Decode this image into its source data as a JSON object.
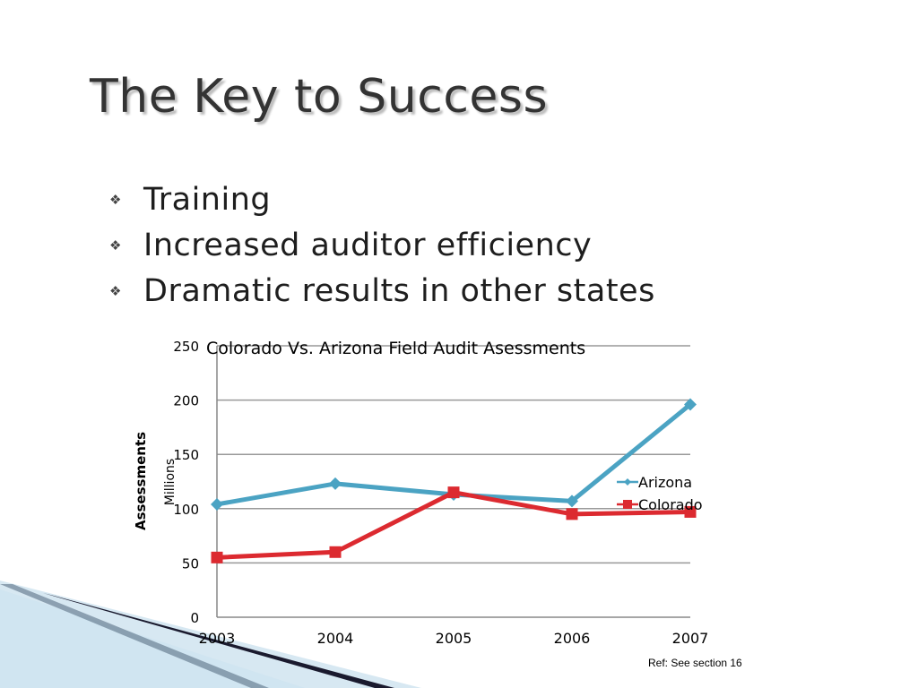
{
  "slide": {
    "title": "The Key to Success",
    "bullets": [
      "Training",
      "Increased auditor efficiency",
      "Dramatic results in other states"
    ],
    "footnote": "Ref: See section 16"
  },
  "icons": {
    "bullet": "diamond-bullet-icon"
  },
  "colors": {
    "arizona": "#4ba3c3",
    "colorado": "#dc2a30",
    "title": "#333333",
    "accent_dark": "#1a1a2e",
    "accent_light": "#b7d6e8"
  },
  "chart_data": {
    "type": "line",
    "title": "Colorado Vs. Arizona Field Audit Asessments",
    "categories": [
      "2003",
      "2004",
      "2005",
      "2006",
      "2007"
    ],
    "series": [
      {
        "name": "Arizona",
        "values": [
          104,
          123,
          113,
          107,
          196
        ]
      },
      {
        "name": "Colorado",
        "values": [
          55,
          60,
          115,
          95,
          97
        ]
      }
    ],
    "ylim": [
      0,
      250
    ],
    "yticks": [
      "0",
      "50",
      "100",
      "150",
      "200",
      "250"
    ],
    "ylabel": "Assessments",
    "yunit_label": "Millions",
    "xlabel": "",
    "grid": true,
    "legend_position": "right"
  }
}
